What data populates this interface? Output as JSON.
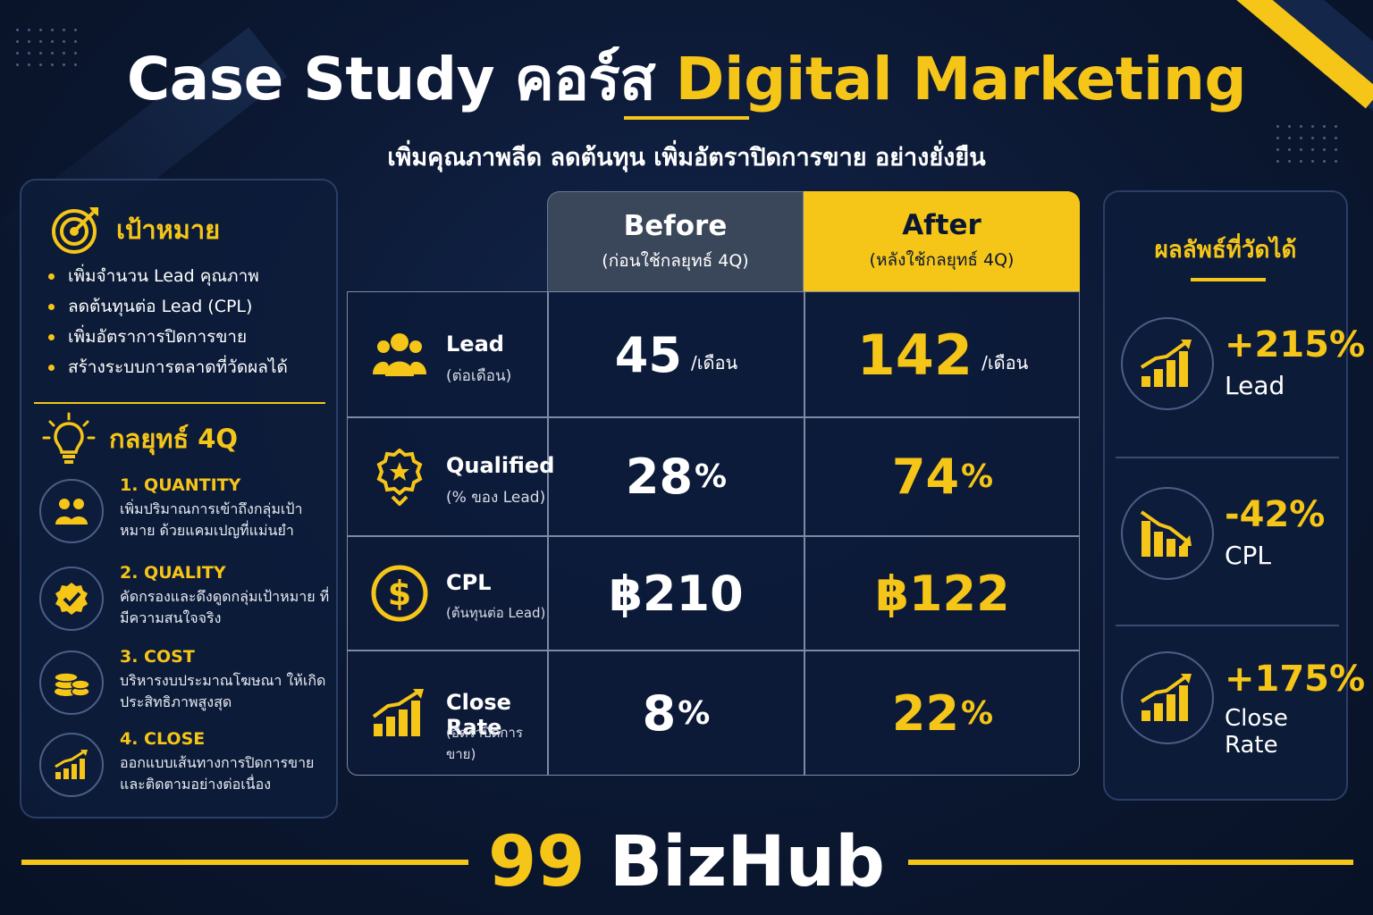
{
  "header": {
    "title_part1": "Case Study",
    "title_part2": "คอร์ส",
    "title_part3": "Digital Marketing",
    "subtitle": "เพิ่มคุณภาพลีด ลดต้นทุน เพิ่มอัตราปิดการขาย อย่างยั่งยืน"
  },
  "goals": {
    "heading": "เป้าหมาย",
    "icon": "target-icon",
    "items": [
      "เพิ่มจำนวน Lead คุณภาพ",
      "ลดต้นทุนต่อ Lead (CPL)",
      "เพิ่มอัตราการปิดการขาย",
      "สร้างระบบการตลาดที่วัดผลได้"
    ]
  },
  "strategy": {
    "heading": "กลยุทธ์ 4Q",
    "icon": "lightbulb-icon",
    "items": [
      {
        "title": "1. QUANTITY",
        "desc": "เพิ่มปริมาณการเข้าถึงกลุ่มเป้าหมาย ด้วยแคมเปญที่แม่นยำ",
        "icon": "users-icon"
      },
      {
        "title": "2. QUALITY",
        "desc": "คัดกรองและดึงดูดกลุ่มเป้าหมาย ที่มีความสนใจจริง",
        "icon": "badge-check-icon"
      },
      {
        "title": "3. COST",
        "desc": "บริหารงบประมาณโฆษณา ให้เกิดประสิทธิภาพสูงสุด",
        "icon": "coins-icon"
      },
      {
        "title": "4. CLOSE",
        "desc": "ออกแบบเส้นทางการปิดการขาย และติดตามอย่างต่อเนื่อง",
        "icon": "growth-chart-icon"
      }
    ]
  },
  "table": {
    "before_title": "Before",
    "before_sub": "(ก่อนใช้กลยุทธ์ 4Q)",
    "after_title": "After",
    "after_sub": "(หลังใช้กลยุทธ์ 4Q)",
    "rows": [
      {
        "name": "Lead",
        "sub": "(ต่อเดือน)",
        "icon": "users-icon",
        "before": "45",
        "before_unit": "/เดือน",
        "after": "142",
        "after_unit": "/เดือน"
      },
      {
        "name": "Qualified",
        "sub": "(% ของ Lead)",
        "icon": "badge-star-icon",
        "before": "28",
        "before_pct": "%",
        "after": "74",
        "after_pct": "%"
      },
      {
        "name": "CPL",
        "sub": "(ต้นทุนต่อ Lead)",
        "icon": "dollar-coin-icon",
        "before": "฿210",
        "after": "฿122"
      },
      {
        "name": "Close Rate",
        "sub": "(อัตราปิดการขาย)",
        "icon": "growth-chart-icon",
        "before": "8",
        "before_pct": "%",
        "after": "22",
        "after_pct": "%"
      }
    ]
  },
  "results": {
    "heading": "ผลลัพธ์ที่วัดได้",
    "items": [
      {
        "value": "+215%",
        "label": "Lead",
        "icon": "trend-up-icon"
      },
      {
        "value": "-42%",
        "label": "CPL",
        "icon": "trend-down-icon"
      },
      {
        "value": "+175%",
        "label": "Close Rate",
        "icon": "trend-up-icon"
      }
    ]
  },
  "footer": {
    "brand_number": "99",
    "brand_name": "BizHub"
  },
  "colors": {
    "background": "#0b1730",
    "accent": "#f5c518",
    "before_header": "#3a4659"
  }
}
